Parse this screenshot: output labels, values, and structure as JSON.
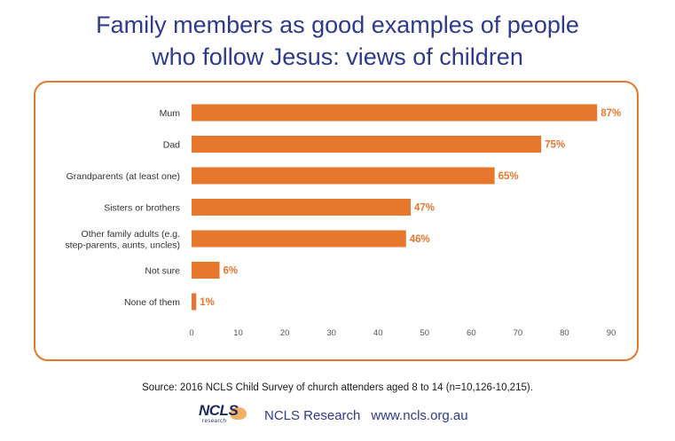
{
  "title_lines": [
    "Family members as good examples of people",
    "who follow Jesus: views of children"
  ],
  "source": "Source: 2016 NCLS Child Survey of church attenders aged 8 to 14 (n=10,126-10,215).",
  "footer": {
    "logo_text": "NCLS",
    "logo_sub": "research",
    "org": "NCLS Research",
    "url": "www.ncls.org.au"
  },
  "colors": {
    "bar": "#e8772e",
    "label": "#e8772e",
    "title": "#2e3a8c",
    "frame": "#e8772e"
  },
  "chart_data": {
    "type": "bar",
    "orientation": "horizontal",
    "title": "Family members as good examples of people who follow Jesus: views of children",
    "categories": [
      [
        "Mum"
      ],
      [
        "Dad"
      ],
      [
        "Grandparents (at least one)"
      ],
      [
        "Sisters or brothers"
      ],
      [
        "Other family adults (e.g.",
        "step-parents, aunts, uncles)"
      ],
      [
        "Not sure"
      ],
      [
        "None of them"
      ]
    ],
    "values": [
      87,
      75,
      65,
      47,
      46,
      6,
      1
    ],
    "value_labels": [
      "87%",
      "75%",
      "65%",
      "47%",
      "46%",
      "6%",
      "1%"
    ],
    "xlim": [
      0,
      90
    ],
    "xticks": [
      0,
      10,
      20,
      30,
      40,
      50,
      60,
      70,
      80,
      90
    ],
    "grid": false
  }
}
